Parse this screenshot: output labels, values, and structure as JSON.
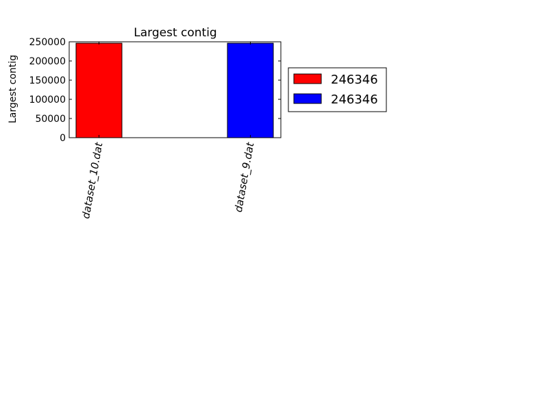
{
  "chart_data": {
    "type": "bar",
    "title": "Largest contig",
    "xlabel": "",
    "ylabel": "Largest contig",
    "categories": [
      "dataset_10.dat",
      "dataset_9.dat"
    ],
    "values": [
      246346,
      246346
    ],
    "bar_colors": [
      "#ff0000",
      "#0000ff"
    ],
    "ylim": [
      0,
      250000
    ],
    "yticks": [
      0,
      50000,
      100000,
      150000,
      200000,
      250000
    ],
    "ytick_labels": [
      "0",
      "50000",
      "100000",
      "150000",
      "200000",
      "250000"
    ],
    "grid": false,
    "legend": {
      "placement": "right-outside",
      "entries": [
        {
          "label": "246346",
          "color": "#ff0000"
        },
        {
          "label": "246346",
          "color": "#0000ff"
        }
      ]
    }
  }
}
